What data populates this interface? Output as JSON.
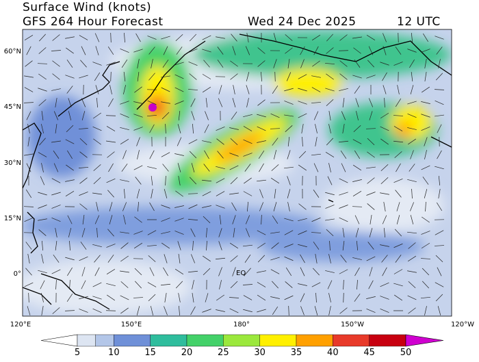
{
  "header": {
    "title": "Surface Wind (knots)",
    "subtitle": "GFS 264 Hour Forecast",
    "date": "Wed 24 Dec 2025",
    "time": "12 UTC"
  },
  "map": {
    "lat_labels": [
      "60°N",
      "45°N",
      "30°N",
      "15°N",
      "0°"
    ],
    "lon_labels": [
      "120°E",
      "150°E",
      "180°",
      "150°W",
      "120°W"
    ],
    "equator_label": "EQ"
  },
  "colorbar": {
    "ticks": [
      5,
      10,
      15,
      20,
      25,
      30,
      35,
      40,
      45,
      50
    ],
    "colors": [
      "#ffffff",
      "#dde5f2",
      "#b3c6e8",
      "#6f90d8",
      "#2fbd9d",
      "#43d169",
      "#9be83c",
      "#fff000",
      "#ffa000",
      "#e83a2a",
      "#c80010",
      "#d000d0"
    ]
  }
}
